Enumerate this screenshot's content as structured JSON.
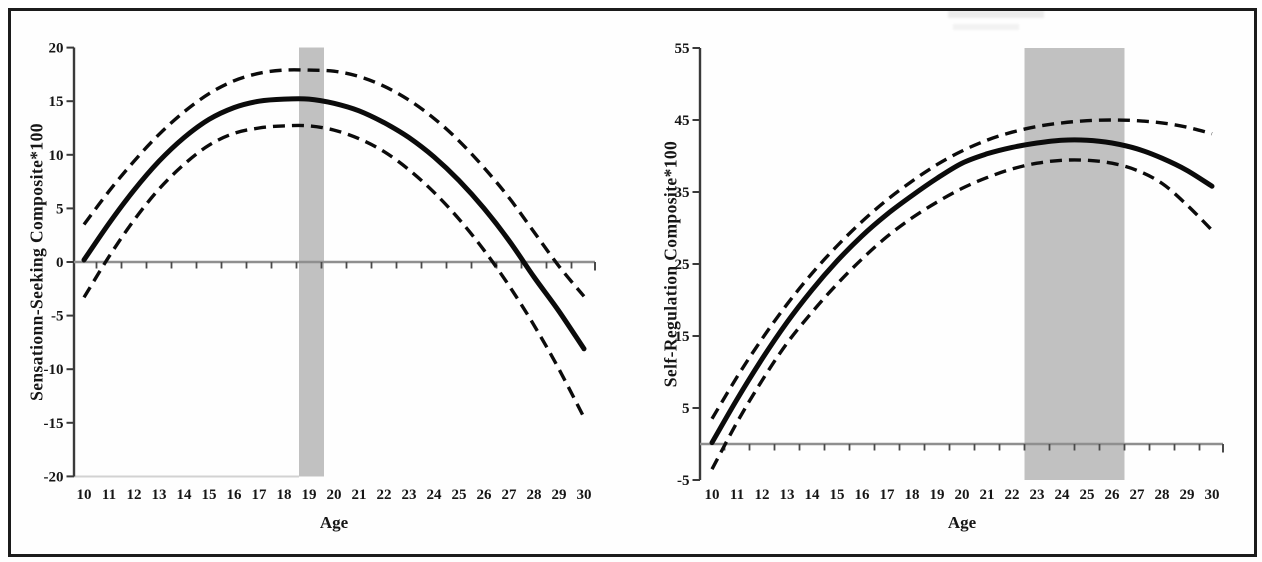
{
  "figure": {
    "description_visible_text_only": true,
    "panel_count": 2
  },
  "colors": {
    "curve": "#0b0b0b",
    "x_axis_line": "#8f8f8f",
    "y_axis_line": "#3a3a3a",
    "tick": "#4a4a4a",
    "shaded_band": "#c1c1c1",
    "partial_bottom_line": "#d2d2d2",
    "text": "#161616",
    "border": "#1b1b1b"
  },
  "chart_data": [
    {
      "type": "line",
      "title": "",
      "xlabel": "Age",
      "ylabel": "Sensationn-Seeking Composite*100",
      "xlim": [
        10,
        30
      ],
      "ylim": [
        -20,
        20
      ],
      "x_axis_at_y": 0,
      "grid": false,
      "legend_position": "none",
      "xticks": [
        10,
        11,
        12,
        13,
        14,
        15,
        16,
        17,
        18,
        19,
        20,
        21,
        22,
        23,
        24,
        25,
        26,
        27,
        28,
        29,
        30
      ],
      "xtick_marks_between_labels": true,
      "yticks": [
        20,
        15,
        10,
        5,
        0,
        -5,
        -10,
        -15,
        -20
      ],
      "x": [
        10,
        11,
        12,
        13,
        14,
        15,
        16,
        17,
        18,
        19,
        20,
        21,
        22,
        23,
        24,
        25,
        26,
        27,
        28,
        29,
        30
      ],
      "series": [
        {
          "name": "estimate",
          "line": "solid",
          "values": [
            0.2,
            3.6,
            6.7,
            9.4,
            11.6,
            13.3,
            14.4,
            15.0,
            15.2,
            15.2,
            14.8,
            14.1,
            13.0,
            11.6,
            9.8,
            7.6,
            5.0,
            2.0,
            -1.4,
            -4.6,
            -8.1
          ]
        },
        {
          "name": "upper-confidence",
          "line": "dashed",
          "values": [
            3.5,
            6.6,
            9.4,
            11.9,
            14.0,
            15.7,
            16.9,
            17.6,
            17.9,
            17.9,
            17.8,
            17.3,
            16.4,
            15.1,
            13.4,
            11.3,
            8.8,
            6.0,
            2.8,
            -0.4,
            -3.2
          ]
        },
        {
          "name": "lower-confidence",
          "line": "dashed",
          "values": [
            -3.3,
            0.5,
            3.9,
            6.8,
            9.1,
            10.9,
            12.0,
            12.5,
            12.7,
            12.7,
            12.3,
            11.5,
            10.3,
            8.6,
            6.5,
            4.0,
            1.1,
            -2.2,
            -5.9,
            -10.0,
            -14.5
          ]
        }
      ],
      "shaded_band": {
        "x_from": 18.6,
        "x_to": 19.6,
        "full_height": true
      },
      "partial_bottom_line_to_x": 18.6
    },
    {
      "type": "line",
      "title": "",
      "xlabel": "Age",
      "ylabel": "Self-Regulation Composite*100",
      "xlim": [
        10,
        30
      ],
      "ylim": [
        -5,
        55
      ],
      "x_axis_at_y": 0,
      "grid": false,
      "legend_position": "none",
      "xticks": [
        10,
        11,
        12,
        13,
        14,
        15,
        16,
        17,
        18,
        19,
        20,
        21,
        22,
        23,
        24,
        25,
        26,
        27,
        28,
        29,
        30
      ],
      "xtick_marks_between_labels": true,
      "yticks": [
        55,
        45,
        35,
        25,
        15,
        5,
        -5
      ],
      "x": [
        10,
        11,
        12,
        13,
        14,
        15,
        16,
        17,
        18,
        19,
        20,
        21,
        22,
        23,
        24,
        25,
        26,
        27,
        28,
        29,
        30
      ],
      "series": [
        {
          "name": "estimate",
          "line": "solid",
          "values": [
            0.2,
            6.2,
            11.8,
            16.9,
            21.4,
            25.4,
            28.9,
            31.9,
            34.5,
            36.9,
            39.0,
            40.3,
            41.2,
            41.8,
            42.2,
            42.2,
            41.8,
            41.0,
            39.7,
            38.0,
            35.8
          ]
        },
        {
          "name": "upper-confidence",
          "line": "dashed",
          "values": [
            3.5,
            9.3,
            14.6,
            19.4,
            23.7,
            27.5,
            30.9,
            33.9,
            36.5,
            38.8,
            40.7,
            42.2,
            43.3,
            44.1,
            44.6,
            44.9,
            45.0,
            44.9,
            44.6,
            44.0,
            43.1
          ]
        },
        {
          "name": "lower-confidence",
          "line": "dashed",
          "values": [
            -3.5,
            3.0,
            8.8,
            14.0,
            18.3,
            22.2,
            25.7,
            28.8,
            31.4,
            33.6,
            35.5,
            37.0,
            38.2,
            39.0,
            39.4,
            39.4,
            39.0,
            38.0,
            36.2,
            33.2,
            29.7
          ]
        }
      ],
      "shaded_band": {
        "x_from": 22.5,
        "x_to": 26.5,
        "full_height": true
      },
      "partial_bottom_line_to_x": null
    }
  ]
}
